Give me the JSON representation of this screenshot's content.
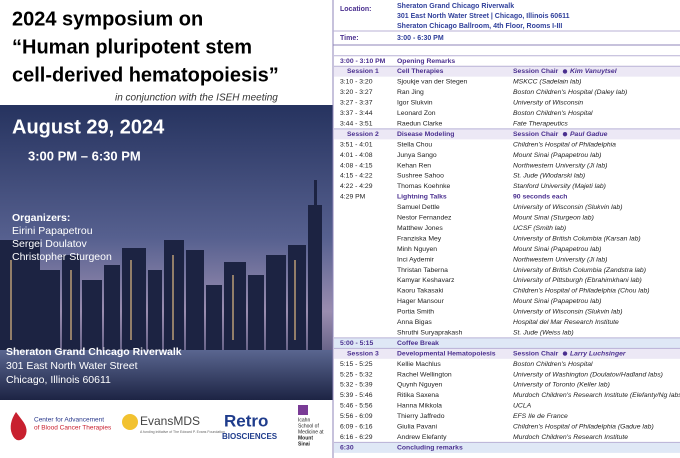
{
  "left": {
    "title_lines": [
      "2024 symposium on",
      "“Human pluripotent stem",
      "cell-derived hematopoiesis”"
    ],
    "subtitle": "in conjunction with the ISEH meeting",
    "date": "August 29, 2024",
    "time": "3:00 PM – 6:30 PM",
    "organizers_heading": "Organizers:",
    "organizers": [
      "Eirini Papapetrou",
      "Sergei Doulatov",
      "Christopher Sturgeon"
    ],
    "venue": [
      "Sheraton Grand Chicago Riverwalk",
      "301 East North Water Street",
      "Chicago, Illinois 60611"
    ],
    "logos": {
      "cabct": [
        "Center for Advancement",
        "of Blood Cancer Therapies"
      ],
      "evans": "EvansMDS",
      "evans_note": "A funding initiative of The Edward P. Evans Foundation",
      "retro": "Retro",
      "retro_sub": "BIOSCIENCES",
      "sinai": [
        "Icahn",
        "School of",
        "Medicine at",
        "Mount",
        "Sinai"
      ]
    }
  },
  "info": {
    "location_label": "Location:",
    "location": [
      "Sheraton Grand Chicago Riverwalk",
      "301 East North Water Street | Chicago, Illinois 60611",
      "Sheraton Chicago Ballroom, 4th Floor, Rooms I-III"
    ],
    "time_label": "Time:",
    "time": "3:00 - 6:30 PM"
  },
  "schedule": [
    {
      "time": "3:00 - 3:10 PM",
      "title": "Opening Remarks"
    },
    {
      "session": "Session 1",
      "topic": "Cell Therapies",
      "chair_label": "Session Chair",
      "chair": "Kim Vanuytsel"
    },
    {
      "time": "3:10 - 3:20",
      "name": "Sjoukje van der Stegen",
      "affiliation": "MSKCC (Sadelain lab)"
    },
    {
      "time": "3:20 - 3:27",
      "name": "Ran Jing",
      "affiliation": "Boston Children's Hospital (Daley lab)"
    },
    {
      "time": "3:27 - 3:37",
      "name": "Igor Slukvin",
      "affiliation": "University of Wisconsin"
    },
    {
      "time": "3:37 - 3:44",
      "name": "Leonard Zon",
      "affiliation": "Boston Children's Hospital"
    },
    {
      "time": "3:44 - 3:51",
      "name": "Raedun Clarke",
      "affiliation": "Fate Therapeutics"
    },
    {
      "session": "Session 2",
      "topic": "Disease Modeling",
      "chair_label": "Session Chair",
      "chair": "Paul Gadue"
    },
    {
      "time": "3:51 - 4:01",
      "name": "Stella Chou",
      "affiliation": "Children's Hospital of Philadelphia"
    },
    {
      "time": "4:01 - 4:08",
      "name": "Junya Sango",
      "affiliation": "Mount Sinai (Papapetrou lab)"
    },
    {
      "time": "4:08 - 4:15",
      "name": "Kehan Ren",
      "affiliation": "Northwestern University (Ji lab)"
    },
    {
      "time": "4:15 - 4:22",
      "name": "Sushree Sahoo",
      "affiliation": "St. Jude (Wlodarski lab)"
    },
    {
      "time": "4:22 - 4:29",
      "name": "Thomas Koehnke",
      "affiliation": "Stanford University (Majeti lab)"
    },
    {
      "time": "4:29 PM",
      "topic": "Lightning Talks",
      "note": "90 seconds each"
    },
    {
      "name": "Samuel Dettle",
      "affiliation": "University of Wisconsin (Slukvin lab)"
    },
    {
      "name": "Nestor Fernandez",
      "affiliation": "Mount Sinai (Sturgeon lab)"
    },
    {
      "name": "Matthew Jones",
      "affiliation": "UCSF (Smith lab)"
    },
    {
      "name": "Franziska Mey",
      "affiliation": "University of British Columbia (Karsan lab)"
    },
    {
      "name": "Minh Nguyen",
      "affiliation": "Mount Sinai (Papapetrou lab)"
    },
    {
      "name": "Inci Aydemir",
      "affiliation": "Northwestern University (Ji lab)"
    },
    {
      "name": "Thristan Taberna",
      "affiliation": "University of British Columbia (Zandstra lab)"
    },
    {
      "name": "Kamyar Keshavarz",
      "affiliation": "University of Pittsburgh (Ebrahimkhani lab)"
    },
    {
      "name": "Kaoru Takasaki",
      "affiliation": "Children's Hospital of Philadelphia (Chou lab)"
    },
    {
      "name": "Hager Mansour",
      "affiliation": "Mount Sinai (Papapetrou lab)"
    },
    {
      "name": "Portia Smith",
      "affiliation": "University of Wisconsin (Slukvin lab)"
    },
    {
      "name": "Anna Bigas",
      "affiliation": "Hospital del Mar Research Institute"
    },
    {
      "name": "Shruthi Suryaprakash",
      "affiliation": "St. Jude (Weiss lab)"
    },
    {
      "time": "5:00 - 5:15",
      "title": "Coffee Break",
      "shade": true
    },
    {
      "session": "Session 3",
      "topic": "Developmental Hematopoiesis",
      "chair_label": "Session Chair",
      "chair": "Larry Luchsinger"
    },
    {
      "time": "5:15 - 5:25",
      "name": "Kellie Machlus",
      "affiliation": "Boston Children's Hospital"
    },
    {
      "time": "5:25 - 5:32",
      "name": "Rachel Wellington",
      "affiliation": "University of Washington (Doulatov/Hadland labs)"
    },
    {
      "time": "5:32 - 5:39",
      "name": "Quynh Nguyen",
      "affiliation": "University of Toronto (Keller lab)"
    },
    {
      "time": "5:39 - 5:46",
      "name": "Ritika Saxena",
      "affiliation": "Murdoch Children's Research Institute (Elefanty/Ng labs)"
    },
    {
      "time": "5:46 - 5:56",
      "name": "Hanna Mikkola",
      "affiliation": "UCLA"
    },
    {
      "time": "5:56 - 6:09",
      "name": "Thierry Jaffredo",
      "affiliation": "EFS Ile de France"
    },
    {
      "time": "6:09 - 6:16",
      "name": "Giulia Pavani",
      "affiliation": "Children's Hospital of Philadelphia (Gadue lab)"
    },
    {
      "time": "6:16 - 6:29",
      "name": "Andrew Elefanty",
      "affiliation": "Murdoch Children's Research Institute"
    },
    {
      "time": "6:30",
      "title": "Concluding remarks",
      "shade": true
    }
  ]
}
